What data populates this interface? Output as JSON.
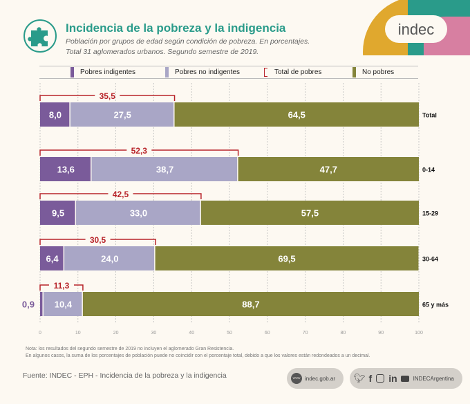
{
  "header": {
    "icon": "puzzle-icon",
    "title": "Incidencia de la pobreza y la indigencia",
    "subtitle_line1": "Población por grupos de edad según condición de pobreza. En porcentajes.",
    "subtitle_line2": "Total 31 aglomerados urbanos. Segundo semestre de 2019."
  },
  "logo": {
    "text": "indec",
    "colors": [
      "#e0a82e",
      "#2a9b8a",
      "#d77fa1"
    ]
  },
  "legend": [
    {
      "label": "Pobres indigentes",
      "color": "#7a5b9a",
      "type": "swatch"
    },
    {
      "label": "Pobres no indigentes",
      "color": "#a9a6c6",
      "type": "swatch"
    },
    {
      "label": "Total de pobres",
      "color": "#b8242a",
      "type": "bracket"
    },
    {
      "label": "No pobres",
      "color": "#84843a",
      "type": "swatch"
    }
  ],
  "chart_data": {
    "type": "bar",
    "orientation": "horizontal",
    "stacked": true,
    "title": "Incidencia de la pobreza y la indigencia",
    "categories": [
      "Total",
      "0-14",
      "15-29",
      "30-64",
      "65 y más"
    ],
    "series": [
      {
        "name": "Pobres indigentes",
        "color": "#7a5b9a",
        "values": [
          8.0,
          13.6,
          9.5,
          6.4,
          0.9
        ],
        "labels": [
          "8,0",
          "13,6",
          "9,5",
          "6,4",
          "0,9"
        ]
      },
      {
        "name": "Pobres no indigentes",
        "color": "#a9a6c6",
        "values": [
          27.5,
          38.7,
          33.0,
          24.0,
          10.4
        ],
        "labels": [
          "27,5",
          "38,7",
          "33,0",
          "24,0",
          "10,4"
        ]
      },
      {
        "name": "No pobres",
        "color": "#84843a",
        "values": [
          64.5,
          47.7,
          57.5,
          69.5,
          88.7
        ],
        "labels": [
          "64,5",
          "47,7",
          "57,5",
          "69,5",
          "88,7"
        ]
      }
    ],
    "totals": {
      "name": "Total de pobres",
      "color": "#b8242a",
      "values": [
        35.5,
        52.3,
        42.5,
        30.5,
        11.3
      ],
      "labels": [
        "35,5",
        "52,3",
        "42,5",
        "30,5",
        "11,3"
      ]
    },
    "xlim": [
      0,
      100
    ],
    "xticks": [
      0,
      10,
      20,
      30,
      40,
      50,
      60,
      70,
      80,
      90,
      100
    ],
    "grid": true,
    "legend_position": "top"
  },
  "footer": {
    "note_line1": "Nota: los resultados del segundo semestre de 2019 no incluyen el aglomerado Gran Resistencia.",
    "note_line2": "En algunos casos, la suma de los porcentajes de población puede no coincidir con el porcentaje total, debido a que los valores están redondeados a un decimal.",
    "source": "Fuente: INDEC - EPH - Incidencia de la pobreza y la indigencia",
    "website": "indec.gob.ar",
    "social_handle": "INDECArgentina",
    "social_icons": [
      "twitter-icon",
      "facebook-icon",
      "instagram-icon",
      "linkedin-icon",
      "youtube-icon"
    ]
  }
}
